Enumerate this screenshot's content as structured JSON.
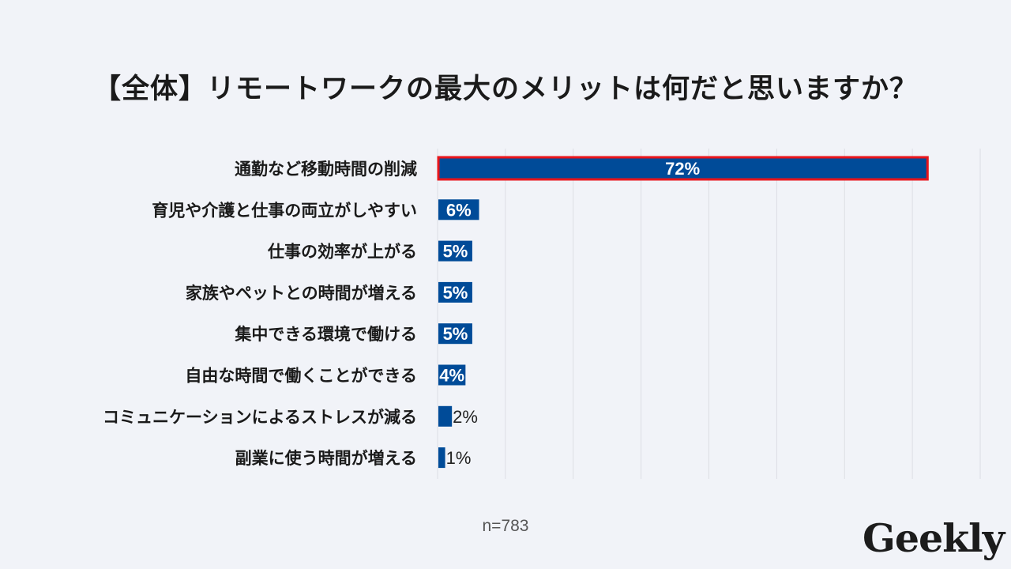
{
  "chart_data": {
    "type": "bar",
    "orientation": "horizontal",
    "title": "【全体】リモートワークの最大のメリットは何だと思いますか？",
    "categories": [
      "通勤など移動時間の削減",
      "育児や介護と仕事の両立がしやすい",
      "仕事の効率が上がる",
      "家族やペットとの時間が増える",
      "集中できる環境で働ける",
      "自由な時間で働くことができる",
      "コミュニケーションによるストレスが減る",
      "副業に使う時間が増える"
    ],
    "values": [
      72,
      6,
      5,
      5,
      5,
      4,
      2,
      1
    ],
    "value_labels": [
      "72%",
      "6%",
      "5%",
      "5%",
      "5%",
      "4%",
      "2%",
      "1%"
    ],
    "xlim": [
      0,
      80
    ],
    "grid": true,
    "highlighted_category": "通勤など移動時間の削減",
    "colors": {
      "bar": "#004b98",
      "highlight_border": "#e8151b",
      "grid": "#dcdee4",
      "label_inside": "#ffffff",
      "label_outside": "#222222",
      "category_text": "#1a1a1a"
    }
  },
  "sample_note": "n=783",
  "logo": "Geekly"
}
